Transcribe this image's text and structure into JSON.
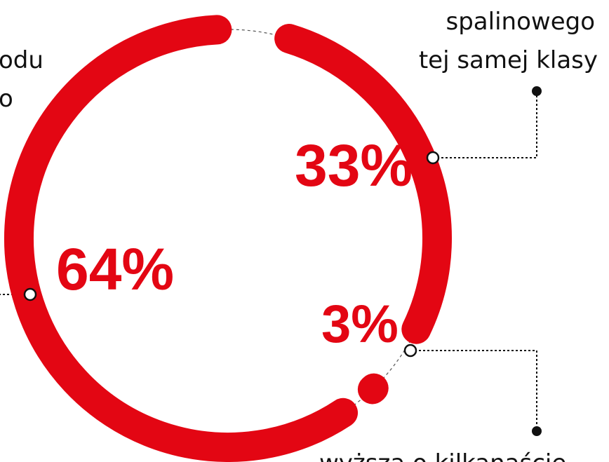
{
  "chart_data": {
    "type": "donut",
    "values": [
      33,
      3,
      64
    ],
    "value_labels": [
      "33%",
      "3%",
      "64%"
    ],
    "color": "#e30613",
    "annotations": [
      "spalinowego",
      "tej samej klasy",
      "odu",
      "o",
      "wyższa o kilkanaście"
    ]
  }
}
